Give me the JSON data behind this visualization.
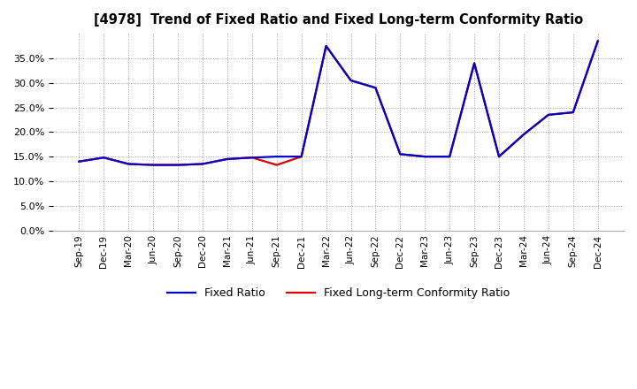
{
  "title": "[4978]  Trend of Fixed Ratio and Fixed Long-term Conformity Ratio",
  "x_labels": [
    "Sep-19",
    "Dec-19",
    "Mar-20",
    "Jun-20",
    "Sep-20",
    "Dec-20",
    "Mar-21",
    "Jun-21",
    "Sep-21",
    "Dec-21",
    "Mar-22",
    "Jun-22",
    "Sep-22",
    "Dec-22",
    "Mar-23",
    "Jun-23",
    "Sep-23",
    "Dec-23",
    "Mar-24",
    "Jun-24",
    "Sep-24",
    "Dec-24"
  ],
  "fixed_ratio": [
    14.0,
    14.8,
    13.5,
    13.3,
    13.3,
    13.5,
    14.5,
    14.8,
    15.0,
    15.0,
    37.5,
    30.5,
    29.0,
    15.5,
    15.0,
    15.0,
    34.0,
    15.0,
    19.5,
    23.5,
    24.0,
    38.5
  ],
  "fixed_lt_ratio": [
    14.0,
    14.8,
    13.5,
    13.3,
    13.3,
    13.5,
    14.5,
    14.8,
    13.3,
    15.0,
    37.5,
    30.5,
    29.0,
    15.5,
    15.0,
    15.0,
    34.0,
    15.0,
    19.5,
    23.5,
    24.0,
    38.5
  ],
  "fixed_ratio_color": "#0000cc",
  "fixed_lt_ratio_color": "#dd0000",
  "background_color": "#ffffff",
  "plot_bg_color": "#ffffff",
  "grid_color": "#9999aa",
  "ylim": [
    0,
    40
  ],
  "yticks": [
    0.0,
    5.0,
    10.0,
    15.0,
    20.0,
    25.0,
    30.0,
    35.0
  ],
  "legend_fixed_ratio": "Fixed Ratio",
  "legend_fixed_lt_ratio": "Fixed Long-term Conformity Ratio",
  "line_width": 1.6
}
